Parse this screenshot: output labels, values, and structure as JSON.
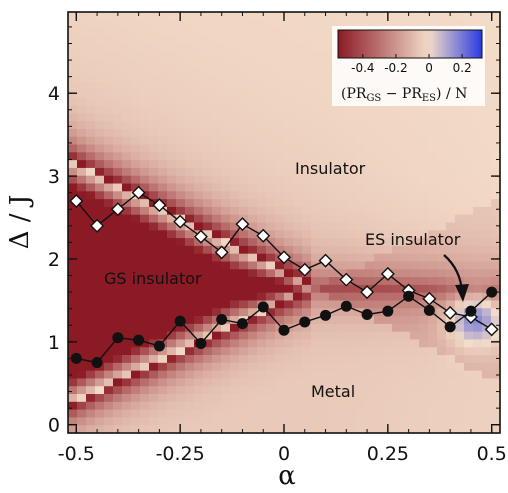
{
  "chart_data": {
    "type": "heatmap",
    "xlabel": "α",
    "ylabel": "Δ / J",
    "xlim": [
      -0.52,
      0.52
    ],
    "ylim": [
      -0.1,
      4.98
    ],
    "x_ticks": [
      -0.5,
      -0.25,
      0,
      0.25,
      0.5
    ],
    "x_tick_labels": [
      "-0.5",
      "-0.25",
      "0",
      "0.25",
      "0.5"
    ],
    "y_ticks": [
      0,
      1,
      2,
      3,
      4
    ],
    "y_tick_labels": [
      "0",
      "1",
      "2",
      "3",
      "4"
    ],
    "colorbar": {
      "label_main": "(PR",
      "label_sub1": "GS",
      "label_mid": " − PR",
      "label_sub2": "ES",
      "label_end": ") / N",
      "ticks": [
        -0.4,
        -0.2,
        0,
        0.2
      ],
      "tick_labels": [
        "-0.4",
        "-0.2",
        "0",
        "0.2"
      ],
      "range": [
        -0.55,
        0.32
      ],
      "colors": {
        "low": "#8b1a24",
        "mid": "#f3dcc8",
        "high": "#2a3be0"
      }
    },
    "annotations": {
      "insulator": "Insulator",
      "gs_insulator": "GS insulator",
      "es_insulator": "ES insulator",
      "metal": "Metal"
    },
    "series": [
      {
        "marker": "diamond",
        "x": [
          -0.5,
          -0.45,
          -0.4,
          -0.35,
          -0.3,
          -0.25,
          -0.2,
          -0.15,
          -0.1,
          -0.05,
          0.0,
          0.05,
          0.1,
          0.15,
          0.2,
          0.25,
          0.3,
          0.35,
          0.4,
          0.45,
          0.5
        ],
        "y": [
          2.7,
          2.4,
          2.6,
          2.8,
          2.65,
          2.45,
          2.27,
          2.08,
          2.42,
          2.28,
          2.02,
          1.87,
          1.98,
          1.75,
          1.6,
          1.82,
          1.62,
          1.52,
          1.35,
          1.3,
          1.15
        ]
      },
      {
        "marker": "circle",
        "x": [
          -0.5,
          -0.45,
          -0.4,
          -0.35,
          -0.3,
          -0.25,
          -0.2,
          -0.15,
          -0.1,
          -0.05,
          0.0,
          0.05,
          0.1,
          0.15,
          0.2,
          0.25,
          0.3,
          0.35,
          0.4,
          0.45,
          0.5
        ],
        "y": [
          0.8,
          0.75,
          1.05,
          1.02,
          0.95,
          1.25,
          0.98,
          1.27,
          1.22,
          1.42,
          1.14,
          1.24,
          1.32,
          1.43,
          1.33,
          1.37,
          1.55,
          1.38,
          1.18,
          1.37,
          1.6
        ]
      }
    ]
  }
}
